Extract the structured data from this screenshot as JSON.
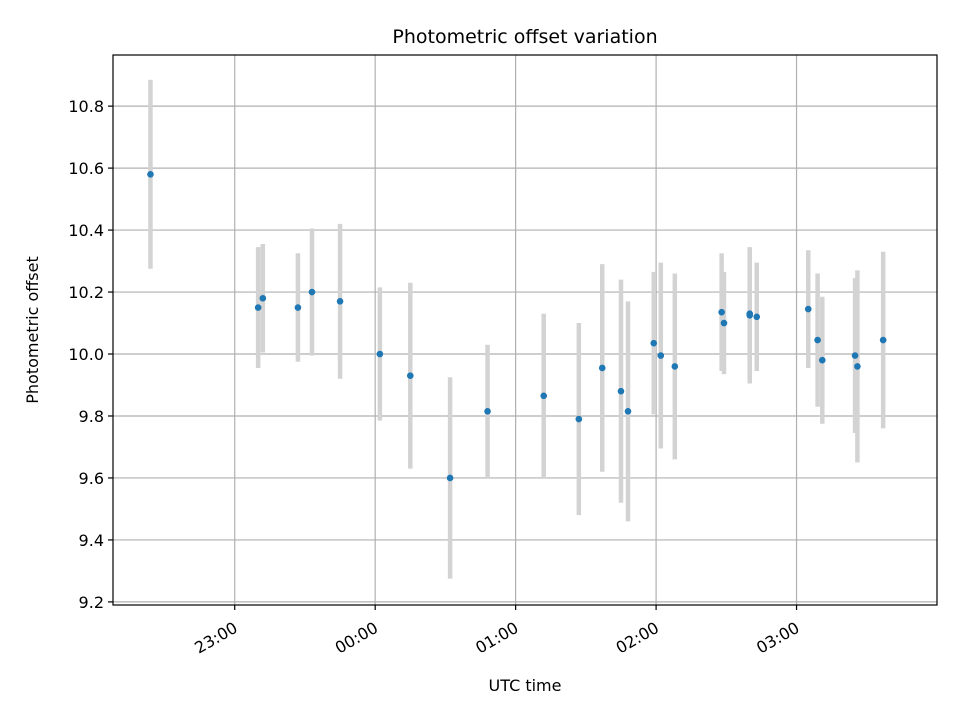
{
  "chart_data": {
    "type": "scatter",
    "title": "Photometric offset variation",
    "xlabel": "UTC time",
    "ylabel": "Photometric offset",
    "x_unit": "UTC time (HH:MM, night spanning midnight)",
    "xlim": [
      "22:08",
      "04:00"
    ],
    "ylim": [
      9.19,
      10.965
    ],
    "x_ticks": [
      "23:00",
      "00:00",
      "01:00",
      "02:00",
      "03:00"
    ],
    "y_ticks": [
      9.2,
      9.4,
      9.6,
      9.8,
      10.0,
      10.2,
      10.4,
      10.6,
      10.8
    ],
    "y_tick_labels": [
      "9.2",
      "9.4",
      "9.6",
      "9.8",
      "10.0",
      "10.2",
      "10.4",
      "10.6",
      "10.8"
    ],
    "grid": true,
    "point_color": "#1f77b4",
    "errorbar_color": "#d3d3d3",
    "series": [
      {
        "points": [
          {
            "x": "22:24",
            "y": 10.58,
            "yerr": 0.305
          },
          {
            "x": "23:10",
            "y": 10.15,
            "yerr": 0.195
          },
          {
            "x": "23:12",
            "y": 10.18,
            "yerr": 0.175
          },
          {
            "x": "23:27",
            "y": 10.15,
            "yerr": 0.175
          },
          {
            "x": "23:33",
            "y": 10.2,
            "yerr": 0.205
          },
          {
            "x": "23:45",
            "y": 10.17,
            "yerr": 0.25
          },
          {
            "x": "00:02",
            "y": 10.0,
            "yerr": 0.215
          },
          {
            "x": "00:15",
            "y": 9.93,
            "yerr": 0.3
          },
          {
            "x": "00:32",
            "y": 9.6,
            "yerr": 0.325
          },
          {
            "x": "00:48",
            "y": 9.815,
            "yerr": 0.215
          },
          {
            "x": "01:12",
            "y": 9.865,
            "yerr": 0.265
          },
          {
            "x": "01:27",
            "y": 9.79,
            "yerr": 0.31
          },
          {
            "x": "01:37",
            "y": 9.955,
            "yerr": 0.335
          },
          {
            "x": "01:45",
            "y": 9.88,
            "yerr": 0.36
          },
          {
            "x": "01:48",
            "y": 9.815,
            "yerr": 0.355
          },
          {
            "x": "01:59",
            "y": 10.035,
            "yerr": 0.23
          },
          {
            "x": "02:02",
            "y": 9.995,
            "yerr": 0.3
          },
          {
            "x": "02:08",
            "y": 9.96,
            "yerr": 0.3
          },
          {
            "x": "02:28",
            "y": 10.135,
            "yerr": 0.19
          },
          {
            "x": "02:29",
            "y": 10.1,
            "yerr": 0.165
          },
          {
            "x": "02:40",
            "y": 10.125,
            "yerr": 0.22
          },
          {
            "x": "02:40",
            "y": 10.13,
            "yerr": 0.21
          },
          {
            "x": "02:43",
            "y": 10.12,
            "yerr": 0.175
          },
          {
            "x": "03:05",
            "y": 10.145,
            "yerr": 0.19
          },
          {
            "x": "03:09",
            "y": 10.045,
            "yerr": 0.215
          },
          {
            "x": "03:11",
            "y": 9.98,
            "yerr": 0.205
          },
          {
            "x": "03:25",
            "y": 9.995,
            "yerr": 0.25
          },
          {
            "x": "03:26",
            "y": 9.96,
            "yerr": 0.31
          },
          {
            "x": "03:37",
            "y": 10.045,
            "yerr": 0.285
          }
        ]
      }
    ]
  }
}
